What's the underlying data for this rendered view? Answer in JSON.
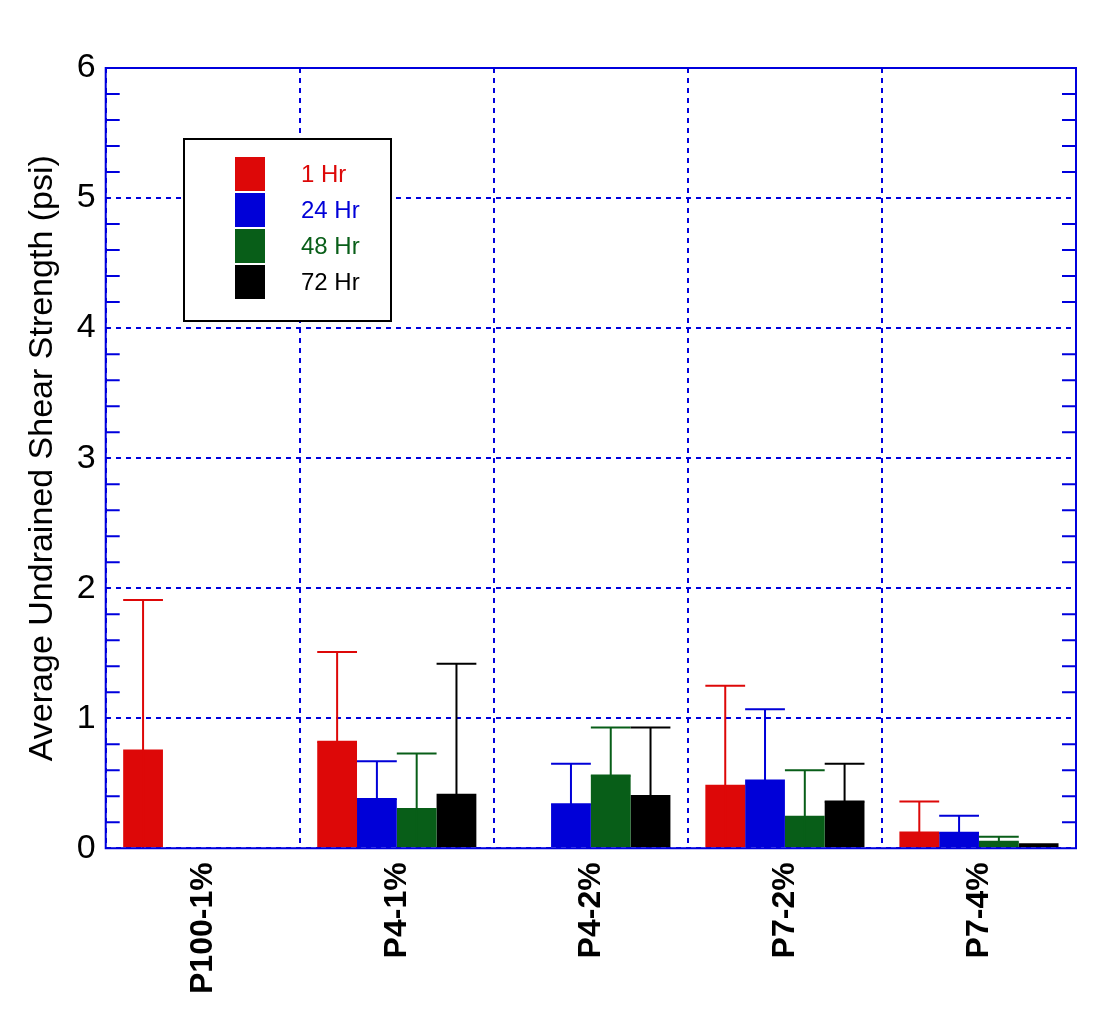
{
  "chart_data": {
    "type": "bar",
    "ylabel": "Average Undrained Shear Strength (psi)",
    "categories": [
      "P100-1%",
      "P4-1%",
      "P4-2%",
      "P7-2%",
      "P7-4%"
    ],
    "series": [
      {
        "name": "1 Hr",
        "color": "#dd0808",
        "values": [
          0.76,
          0.82,
          0,
          0.49,
          0.13
        ],
        "errors": [
          [
            0,
            1.91
          ],
          [
            0.82,
            1.51
          ],
          null,
          [
            0,
            1.25
          ],
          [
            0,
            0.36
          ]
        ]
      },
      {
        "name": "24 Hr",
        "color": "#0000d8",
        "values": [
          0,
          0.38,
          0.34,
          0.53,
          0.12
        ],
        "errors": [
          null,
          [
            0.38,
            0.67
          ],
          [
            0.34,
            0.65
          ],
          [
            0,
            1.07
          ],
          [
            0.12,
            0.25
          ]
        ]
      },
      {
        "name": "48 Hr",
        "color": "#085e18",
        "values": [
          0,
          0.31,
          0.56,
          0.25,
          0.05
        ],
        "errors": [
          null,
          [
            0,
            0.73
          ],
          [
            0.56,
            0.93
          ],
          [
            0,
            0.6
          ],
          [
            0.05,
            0.09
          ]
        ]
      },
      {
        "name": "72 Hr",
        "color": "#000000",
        "values": [
          0,
          0.42,
          0.41,
          0.36,
          0.04
        ],
        "errors": [
          null,
          [
            0,
            1.42
          ],
          [
            0,
            0.93
          ],
          [
            0.36,
            0.65
          ],
          null
        ]
      }
    ],
    "ylim": [
      0,
      6
    ],
    "yticks": [
      0,
      {
        "value": 0.2,
        "label": null
      },
      {
        "value": 0.4,
        "label": null
      },
      {
        "value": 0.6,
        "label": null
      },
      {
        "value": 0.8,
        "label": null
      },
      1,
      {
        "value": 1.2,
        "label": null
      },
      {
        "value": 1.4,
        "label": null
      },
      {
        "value": 1.6,
        "label": null
      },
      {
        "value": 1.8,
        "label": null
      },
      2,
      {
        "value": 2.2,
        "label": null
      },
      {
        "value": 2.4,
        "label": null
      },
      {
        "value": 2.6,
        "label": null
      },
      {
        "value": 2.8,
        "label": null
      },
      3,
      {
        "value": 3.2,
        "label": null
      },
      {
        "value": 3.4,
        "label": null
      },
      {
        "value": 3.6,
        "label": null
      },
      {
        "value": 3.8,
        "label": null
      },
      4,
      {
        "value": 4.2,
        "label": null
      },
      {
        "value": 4.4,
        "label": null
      },
      {
        "value": 4.6,
        "label": null
      },
      {
        "value": 4.8,
        "label": null
      },
      5,
      {
        "value": 5.2,
        "label": null
      },
      {
        "value": 5.4,
        "label": null
      },
      {
        "value": 5.6,
        "label": null
      },
      {
        "value": 5.8,
        "label": null
      },
      6
    ],
    "grid": true,
    "legend": "top left"
  }
}
